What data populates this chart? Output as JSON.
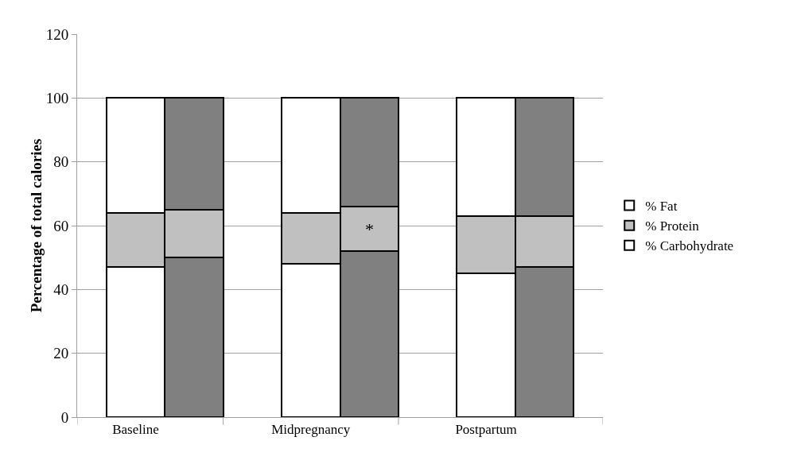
{
  "chart_data": {
    "type": "bar",
    "ylabel": "Percentage of total calories",
    "stacked": true,
    "categories": [
      "Baseline",
      null,
      null,
      "Midpregnancy",
      null,
      null,
      "Postpartum",
      null
    ],
    "series": [
      {
        "name": "% Carbohydrate",
        "colors": [
          "#ffffff",
          "#808080",
          "#ffffff",
          "#ffffff",
          "#808080",
          "#ffffff",
          "#ffffff",
          "#808080"
        ],
        "values": [
          47,
          50,
          null,
          48,
          52,
          null,
          45,
          47
        ]
      },
      {
        "name": "% Protein",
        "color": "#c0c0c0",
        "values": [
          17,
          15,
          null,
          16,
          14,
          null,
          18,
          16
        ]
      },
      {
        "name": "% Fat",
        "colors": [
          "#ffffff",
          "#808080",
          "#ffffff",
          "#ffffff",
          "#808080",
          "#ffffff",
          "#ffffff",
          "#808080"
        ],
        "values": [
          36,
          35,
          null,
          36,
          34,
          null,
          37,
          37
        ]
      }
    ],
    "annotations": [
      "*"
    ],
    "ylim": [
      0,
      120
    ],
    "yticks": [
      0,
      20,
      40,
      60,
      80,
      100,
      120
    ],
    "grid": "y",
    "legend": "right"
  }
}
